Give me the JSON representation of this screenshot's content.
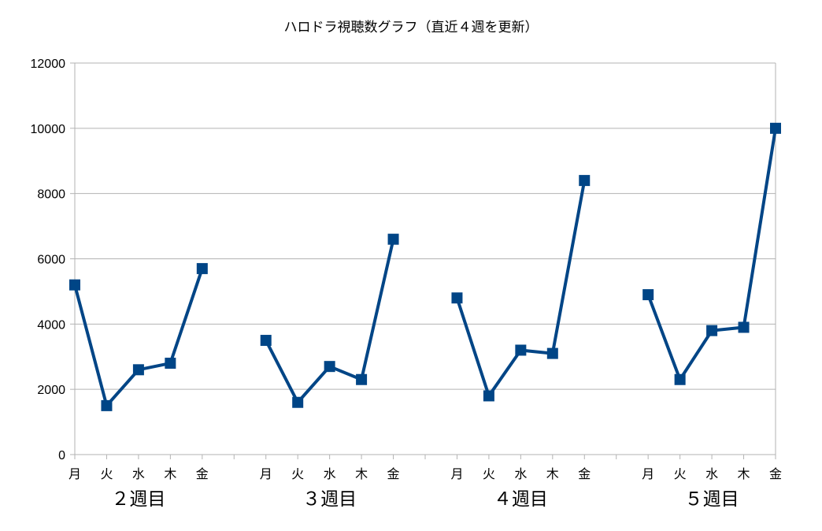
{
  "chart_data": {
    "type": "line",
    "title": "ハロドラ視聴数グラフ（直近４週を更新）",
    "xlabel": "",
    "ylabel": "",
    "ylim": [
      0,
      12000
    ],
    "yticks": [
      0,
      2000,
      4000,
      6000,
      8000,
      10000,
      12000
    ],
    "grid": true,
    "legend": "none",
    "groups": [
      {
        "label": "２週目",
        "categories": [
          "月",
          "火",
          "水",
          "木",
          "金"
        ],
        "values": [
          5200,
          1500,
          2600,
          2800,
          5700
        ]
      },
      {
        "label": "３週目",
        "categories": [
          "月",
          "火",
          "水",
          "木",
          "金"
        ],
        "values": [
          3500,
          1600,
          2700,
          2300,
          6600
        ]
      },
      {
        "label": "４週目",
        "categories": [
          "月",
          "火",
          "水",
          "木",
          "金"
        ],
        "values": [
          4800,
          1800,
          3200,
          3100,
          8400
        ]
      },
      {
        "label": "５週目",
        "categories": [
          "月",
          "火",
          "水",
          "木",
          "金"
        ],
        "values": [
          4900,
          2300,
          3800,
          3900,
          10000
        ]
      }
    ],
    "series_color": "#004586",
    "grid_color": "#b3b3b3"
  }
}
